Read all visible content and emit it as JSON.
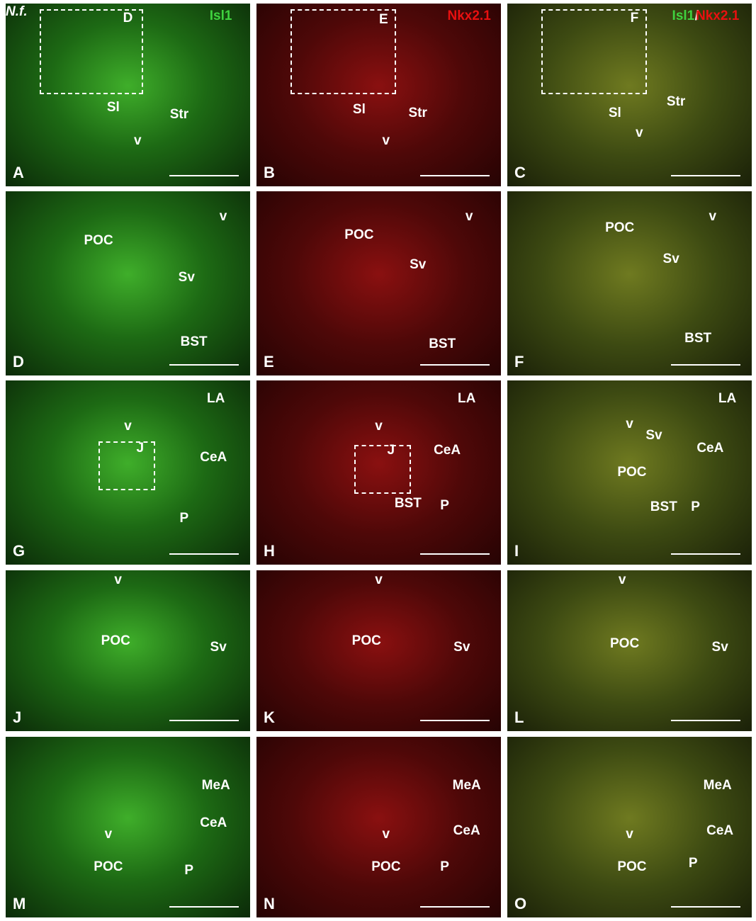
{
  "species": "N.f.",
  "panels": [
    {
      "letter": "A",
      "labels": [
        "Isl1",
        "D",
        "Sl",
        "Str",
        "v"
      ]
    },
    {
      "letter": "B",
      "labels": [
        "Nkx2.1",
        "E",
        "Sl",
        "Str",
        "v"
      ]
    },
    {
      "letter": "C",
      "labels": [
        "Isl1",
        "/",
        "Nkx2.1",
        "F",
        "Sl",
        "Str",
        "v"
      ]
    },
    {
      "letter": "D",
      "labels": [
        "v",
        "POC",
        "Sv",
        "BST"
      ]
    },
    {
      "letter": "E",
      "labels": [
        "v",
        "POC",
        "Sv",
        "BST"
      ]
    },
    {
      "letter": "F",
      "labels": [
        "v",
        "POC",
        "Sv",
        "BST"
      ]
    },
    {
      "letter": "G",
      "labels": [
        "LA",
        "v",
        "J",
        "CeA",
        "P"
      ]
    },
    {
      "letter": "H",
      "labels": [
        "LA",
        "v",
        "J",
        "CeA",
        "BST",
        "P"
      ]
    },
    {
      "letter": "I",
      "labels": [
        "LA",
        "v",
        "Sv",
        "CeA",
        "POC",
        "BST",
        "P"
      ]
    },
    {
      "letter": "J",
      "labels": [
        "v",
        "POC",
        "Sv"
      ]
    },
    {
      "letter": "K",
      "labels": [
        "v",
        "POC",
        "Sv"
      ]
    },
    {
      "letter": "L",
      "labels": [
        "v",
        "POC",
        "Sv"
      ]
    },
    {
      "letter": "M",
      "labels": [
        "MeA",
        "CeA",
        "v",
        "POC",
        "P"
      ]
    },
    {
      "letter": "N",
      "labels": [
        "MeA",
        "CeA",
        "v",
        "POC",
        "P"
      ]
    },
    {
      "letter": "O",
      "labels": [
        "MeA",
        "CeA",
        "v",
        "POC",
        "P"
      ]
    }
  ]
}
